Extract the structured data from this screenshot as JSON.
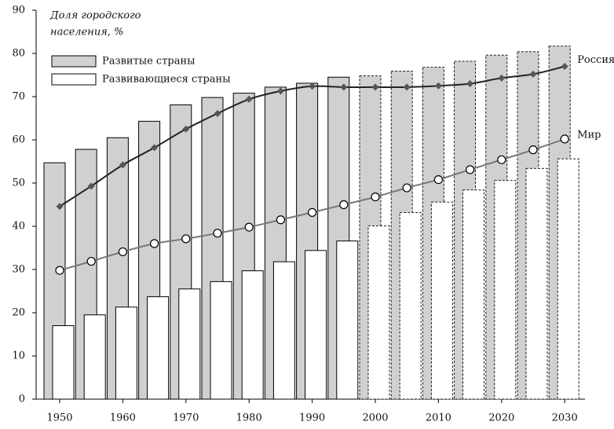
{
  "chart_data": {
    "type": "bar",
    "ylabel": [
      "Доля городского",
      "населения, %"
    ],
    "categories": [
      "1950",
      null,
      "1960",
      null,
      "1970",
      null,
      "1980",
      null,
      "1990",
      null,
      "2000",
      null,
      "2010",
      null,
      "2020",
      null,
      "2030"
    ],
    "projection_from": 10,
    "series": [
      {
        "name": "Развитые страны",
        "kind": "bar",
        "color": "#d0d0d0",
        "values": [
          54.7,
          57.8,
          60.5,
          64.3,
          68.1,
          69.8,
          70.8,
          72.2,
          73.1,
          74.5,
          74.8,
          75.9,
          76.8,
          78.2,
          79.6,
          80.4,
          81.7
        ]
      },
      {
        "name": "Развивающиеся страны",
        "kind": "bar",
        "color": "#ffffff",
        "values": [
          17.0,
          19.5,
          21.3,
          23.7,
          25.5,
          27.2,
          29.7,
          31.8,
          34.4,
          36.6,
          40.1,
          43.2,
          45.6,
          48.4,
          50.6,
          53.4,
          55.6
        ]
      },
      {
        "name": "Россия",
        "kind": "line",
        "color": "#222222",
        "marker": "diamond",
        "values": [
          44.6,
          49.3,
          54.2,
          58.2,
          62.5,
          66.1,
          69.4,
          71.3,
          72.4,
          72.2,
          72.2,
          72.2,
          72.5,
          73.0,
          74.3,
          75.2,
          77.0
        ]
      },
      {
        "name": "Мир",
        "kind": "line",
        "color": "#777777",
        "marker": "circle",
        "values": [
          29.8,
          31.9,
          34.1,
          36.0,
          37.1,
          38.4,
          39.8,
          41.5,
          43.2,
          45.0,
          46.8,
          48.9,
          50.8,
          53.1,
          55.4,
          57.7,
          60.2
        ]
      }
    ],
    "ylim": [
      0,
      90
    ],
    "yticks": [
      0,
      10,
      20,
      30,
      40,
      50,
      60,
      70,
      80,
      90
    ]
  }
}
